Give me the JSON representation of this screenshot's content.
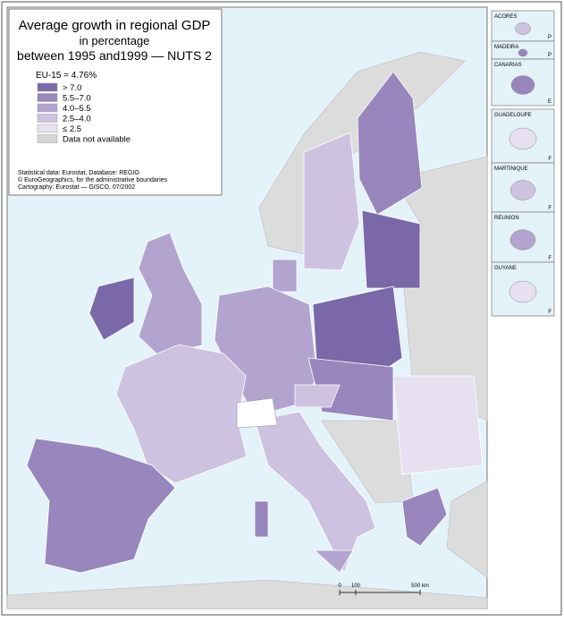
{
  "title": [
    "Average growth in regional GDP",
    "in percentage",
    "between 1995 and1999 — NUTS 2"
  ],
  "legend": {
    "heading": "EU-15 = 4.76%",
    "items": [
      {
        "label": "> 7.0",
        "color": "#7b68a8"
      },
      {
        "label": "5.5–7.0",
        "color": "#9886bd"
      },
      {
        "label": "4.0–5.5",
        "color": "#b2a4cf"
      },
      {
        "label": "2.5–4.0",
        "color": "#cdc3e0"
      },
      {
        "label": "≤ 2.5",
        "color": "#e6e0f1"
      },
      {
        "label": "Data not available",
        "color": "#d6d6d6"
      }
    ]
  },
  "sources": [
    "Statistical data: Eurostat, Database: REGIO",
    "© EuroGeographics, for the administrative boundaries",
    "Cartography: Eurostat — GISCO, 07/2002"
  ],
  "insets": [
    {
      "name": "ACORES",
      "country": "P"
    },
    {
      "name": "MADEIRA",
      "country": "P"
    },
    {
      "name": "CANARIAS",
      "country": "E"
    },
    {
      "name": "GUADELOUPE",
      "country": "F"
    },
    {
      "name": "MARTINIQUE",
      "country": "F"
    },
    {
      "name": "REUNION",
      "country": "F"
    },
    {
      "name": "GUYANE",
      "country": "F"
    }
  ],
  "scale": [
    "0",
    "100",
    "500 km"
  ]
}
